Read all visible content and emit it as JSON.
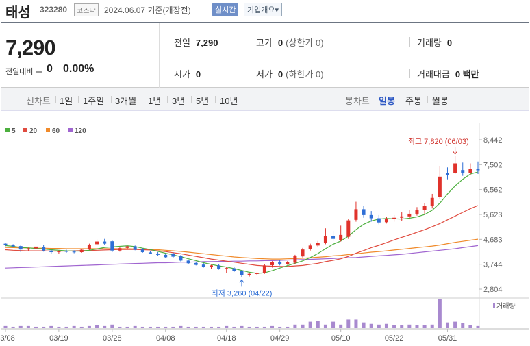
{
  "header": {
    "name": "태성",
    "code": "323280",
    "market": "코스닥",
    "date": "2024.06.07 기준(개장전)",
    "realtime_btn": "실시간",
    "company_btn": "기업개요▾"
  },
  "quote": {
    "price": "7,290",
    "change_label": "전일대비",
    "change_value": "0",
    "change_pct": "0.00%",
    "prev_close_label": "전일",
    "prev_close": "7,290",
    "high_label": "고가",
    "high": "0",
    "upper_limit": "(상한가 0)",
    "volume_label": "거래량",
    "volume": "0",
    "open_label": "시가",
    "open": "0",
    "low_label": "저가",
    "low": "0",
    "lower_limit": "(하한가 0)",
    "trade_value_label": "거래대금",
    "trade_value": "0 백만"
  },
  "periods": {
    "line_label": "선차트",
    "line_items": [
      "1일",
      "1주일",
      "3개월",
      "1년",
      "3년",
      "5년",
      "10년"
    ],
    "candle_label": "봉차트",
    "candle_items": [
      "일봉",
      "주봉",
      "월봉"
    ],
    "candle_selected": "일봉"
  },
  "chart_data": {
    "type": "candlestick",
    "ma_legend": [
      {
        "name": "5",
        "color": "#4caf3e"
      },
      {
        "name": "20",
        "color": "#e04b3f"
      },
      {
        "name": "60",
        "color": "#f08a2a"
      },
      {
        "name": "120",
        "color": "#a065d0"
      }
    ],
    "y_ticks": [
      "8,442",
      "7,502",
      "6,562",
      "5,623",
      "4,683",
      "3,744",
      "2,804"
    ],
    "ylim": [
      2804,
      8442
    ],
    "x_ticks": [
      {
        "label": "03/08",
        "i": 0
      },
      {
        "label": "03/19",
        "i": 7
      },
      {
        "label": "03/28",
        "i": 14
      },
      {
        "label": "04/08",
        "i": 21
      },
      {
        "label": "04/18",
        "i": 29
      },
      {
        "label": "04/29",
        "i": 36
      },
      {
        "label": "05/10",
        "i": 44
      },
      {
        "label": "05/22",
        "i": 51
      },
      {
        "label": "05/31",
        "i": 58
      }
    ],
    "high_annotation": {
      "text": "최고 7,820 (06/03)",
      "i": 59,
      "value": 7820
    },
    "low_annotation": {
      "text": "최저 3,260 (04/22)",
      "i": 31,
      "value": 3260
    },
    "volume_label": "거래량",
    "candles": [
      [
        4520,
        4560,
        4420,
        4480
      ],
      [
        4470,
        4500,
        4380,
        4420
      ],
      [
        4430,
        4470,
        4200,
        4300
      ],
      [
        4300,
        4370,
        4230,
        4340
      ],
      [
        4340,
        4420,
        4300,
        4410
      ],
      [
        4400,
        4460,
        4220,
        4260
      ],
      [
        4260,
        4290,
        4150,
        4200
      ],
      [
        4200,
        4260,
        4150,
        4240
      ],
      [
        4240,
        4290,
        4180,
        4220
      ],
      [
        4220,
        4270,
        4160,
        4200
      ],
      [
        4200,
        4310,
        4180,
        4290
      ],
      [
        4300,
        4520,
        4280,
        4480
      ],
      [
        4500,
        4680,
        4450,
        4600
      ],
      [
        4600,
        4700,
        4480,
        4520
      ],
      [
        4610,
        4660,
        4200,
        4260
      ],
      [
        4260,
        4380,
        4220,
        4350
      ],
      [
        4360,
        4440,
        4300,
        4420
      ],
      [
        4420,
        4450,
        4270,
        4290
      ],
      [
        4300,
        4350,
        4180,
        4200
      ],
      [
        4190,
        4240,
        4130,
        4150
      ],
      [
        4140,
        4200,
        4060,
        4100
      ],
      [
        4100,
        4150,
        3980,
        4010
      ],
      [
        4150,
        4200,
        3990,
        4030
      ],
      [
        4050,
        4090,
        3850,
        3880
      ],
      [
        3880,
        3910,
        3760,
        3780
      ],
      [
        3790,
        3830,
        3700,
        3720
      ],
      [
        3730,
        3780,
        3620,
        3650
      ],
      [
        3640,
        3720,
        3580,
        3700
      ],
      [
        3700,
        3740,
        3540,
        3560
      ],
      [
        3560,
        3650,
        3420,
        3600
      ],
      [
        3590,
        3640,
        3450,
        3480
      ],
      [
        3480,
        3520,
        3260,
        3340
      ],
      [
        3340,
        3400,
        3280,
        3380
      ],
      [
        3380,
        3430,
        3320,
        3400
      ],
      [
        3400,
        3740,
        3380,
        3700
      ],
      [
        3710,
        3860,
        3620,
        3820
      ],
      [
        3830,
        3900,
        3700,
        3760
      ],
      [
        3760,
        3860,
        3720,
        3830
      ],
      [
        3800,
        4100,
        3750,
        4050
      ],
      [
        4040,
        4360,
        4000,
        4300
      ],
      [
        4320,
        4520,
        4260,
        4450
      ],
      [
        4450,
        4620,
        4380,
        4560
      ],
      [
        4560,
        5100,
        4500,
        4800
      ],
      [
        4800,
        5000,
        4620,
        4700
      ],
      [
        4650,
        5200,
        4600,
        4850
      ],
      [
        4780,
        5450,
        4700,
        5400
      ],
      [
        5420,
        6100,
        5350,
        5820
      ],
      [
        5820,
        5950,
        5500,
        5600
      ],
      [
        5600,
        5750,
        5350,
        5480
      ],
      [
        5480,
        5600,
        5250,
        5320
      ],
      [
        5330,
        5520,
        5280,
        5450
      ],
      [
        5450,
        5600,
        5350,
        5500
      ],
      [
        5500,
        5700,
        5380,
        5550
      ],
      [
        5550,
        5780,
        5440,
        5650
      ],
      [
        5650,
        5900,
        5580,
        5800
      ],
      [
        5800,
        6050,
        5650,
        5950
      ],
      [
        5950,
        6400,
        5850,
        6250
      ],
      [
        6280,
        7450,
        6200,
        7050
      ],
      [
        7200,
        7400,
        6950,
        7100
      ],
      [
        7200,
        7820,
        7150,
        7550
      ],
      [
        7300,
        7580,
        7080,
        7200
      ],
      [
        7200,
        7550,
        7100,
        7350
      ],
      [
        7350,
        7620,
        7150,
        7290
      ]
    ],
    "ma5": [
      4450,
      4420,
      4380,
      4360,
      4340,
      4320,
      4290,
      4270,
      4250,
      4240,
      4240,
      4270,
      4320,
      4380,
      4400,
      4420,
      4440,
      4410,
      4350,
      4300,
      4230,
      4160,
      4100,
      4030,
      3950,
      3880,
      3800,
      3740,
      3680,
      3640,
      3580,
      3510,
      3440,
      3400,
      3420,
      3500,
      3600,
      3690,
      3780,
      3870,
      4000,
      4150,
      4330,
      4500,
      4620,
      4800,
      5050,
      5250,
      5380,
      5450,
      5470,
      5460,
      5450,
      5480,
      5530,
      5620,
      5780,
      6050,
      6400,
      6700,
      6950,
      7150,
      7230
    ],
    "ma20": [
      4290,
      4270,
      4260,
      4250,
      4250,
      4250,
      4240,
      4240,
      4240,
      4250,
      4260,
      4260,
      4270,
      4280,
      4290,
      4300,
      4300,
      4300,
      4290,
      4280,
      4250,
      4220,
      4180,
      4140,
      4090,
      4040,
      3990,
      3940,
      3900,
      3860,
      3820,
      3780,
      3740,
      3700,
      3680,
      3670,
      3660,
      3660,
      3680,
      3700,
      3740,
      3780,
      3840,
      3890,
      3950,
      4040,
      4160,
      4260,
      4370,
      4460,
      4560,
      4660,
      4760,
      4850,
      4950,
      5050,
      5160,
      5280,
      5420,
      5560,
      5700,
      5840,
      5960
    ],
    "ma60": [
      4380,
      4370,
      4360,
      4360,
      4350,
      4350,
      4340,
      4340,
      4330,
      4330,
      4330,
      4330,
      4330,
      4330,
      4330,
      4330,
      4330,
      4320,
      4310,
      4300,
      4290,
      4270,
      4250,
      4230,
      4200,
      4170,
      4140,
      4110,
      4080,
      4050,
      4020,
      4000,
      3980,
      3960,
      3950,
      3940,
      3940,
      3950,
      3960,
      3970,
      3990,
      4010,
      4030,
      4060,
      4080,
      4110,
      4140,
      4170,
      4200,
      4220,
      4250,
      4280,
      4310,
      4340,
      4370,
      4400,
      4430,
      4470,
      4520,
      4570,
      4610,
      4650,
      4690
    ],
    "ma120": [
      3600,
      3610,
      3620,
      3630,
      3640,
      3650,
      3660,
      3670,
      3680,
      3690,
      3700,
      3710,
      3720,
      3730,
      3740,
      3750,
      3760,
      3770,
      3780,
      3790,
      3800,
      3800,
      3810,
      3820,
      3820,
      3830,
      3840,
      3840,
      3850,
      3850,
      3860,
      3860,
      3870,
      3870,
      3880,
      3880,
      3890,
      3900,
      3910,
      3920,
      3930,
      3940,
      3950,
      3960,
      3980,
      3990,
      4000,
      4020,
      4040,
      4060,
      4080,
      4100,
      4120,
      4150,
      4180,
      4210,
      4240,
      4270,
      4300,
      4330,
      4370,
      4410,
      4450
    ],
    "volumes": [
      2,
      1,
      2,
      2,
      1,
      1,
      2,
      1,
      1,
      2,
      1,
      2,
      3,
      2,
      4,
      1,
      1,
      2,
      1,
      1,
      1,
      1,
      1,
      2,
      1,
      1,
      1,
      1,
      1,
      2,
      1,
      2,
      1,
      1,
      1,
      2,
      1,
      1,
      4,
      4,
      8,
      9,
      4,
      8,
      4,
      11,
      11,
      7,
      5,
      4,
      5,
      3,
      3,
      4,
      3,
      3,
      4,
      40,
      7,
      8,
      6,
      3,
      2
    ],
    "vol_max": 40
  }
}
